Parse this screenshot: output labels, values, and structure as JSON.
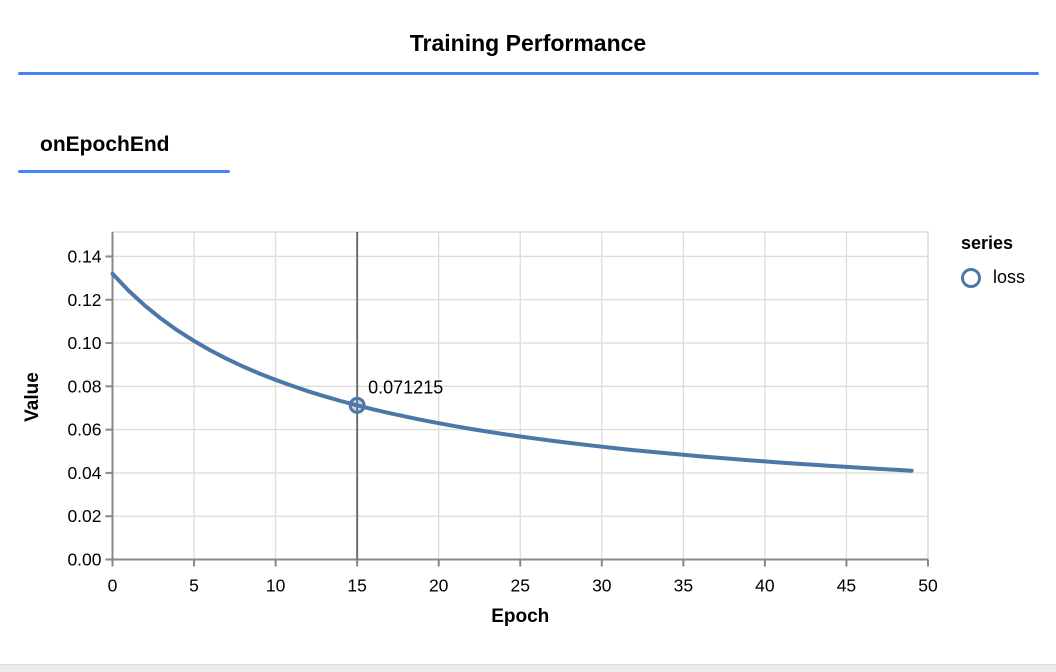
{
  "page": {
    "title": "Training Performance",
    "section_title": "onEpochEnd"
  },
  "colors": {
    "accent_rule": "#4285f4",
    "series_line": "#4c78a8",
    "grid": "#dddddd",
    "view_border": "#dddddd",
    "axis": "#888888",
    "cursor_rule": "#6e6e6e",
    "label_text": "#000000"
  },
  "legend": {
    "title": "series",
    "items": [
      {
        "label": "loss",
        "marker": "circle-outline-icon"
      }
    ]
  },
  "chart_data": {
    "type": "line",
    "title": "Training Performance",
    "subtitle": "onEpochEnd",
    "xlabel": "Epoch",
    "ylabel": "Value",
    "xlim": [
      0,
      50
    ],
    "ylim": [
      0,
      0.1513
    ],
    "grid": true,
    "legend_position": "right",
    "x_ticks": [
      0,
      5,
      10,
      15,
      20,
      25,
      30,
      35,
      40,
      45,
      50
    ],
    "y_ticks": [
      0,
      0.02,
      0.04,
      0.06,
      0.08,
      0.1,
      0.12,
      0.14
    ],
    "y_tick_labels": [
      "0.00",
      "0.02",
      "0.04",
      "0.06",
      "0.08",
      "0.10",
      "0.12",
      "0.14"
    ],
    "series": [
      {
        "name": "loss",
        "x": [
          0,
          1,
          2,
          3,
          4,
          5,
          6,
          7,
          8,
          9,
          10,
          11,
          12,
          13,
          14,
          15,
          16,
          17,
          18,
          19,
          20,
          21,
          22,
          23,
          24,
          25,
          26,
          27,
          28,
          29,
          30,
          31,
          32,
          33,
          34,
          35,
          36,
          37,
          38,
          39,
          40,
          41,
          42,
          43,
          44,
          45,
          46,
          47,
          48,
          49
        ],
        "values": [
          0.132009,
          0.12411,
          0.117214,
          0.111142,
          0.105754,
          0.10094,
          0.096614,
          0.092705,
          0.089155,
          0.085918,
          0.082953,
          0.080227,
          0.077714,
          0.075388,
          0.07323,
          0.071215,
          0.069349,
          0.067598,
          0.065957,
          0.064416,
          0.062967,
          0.061601,
          0.060311,
          0.059092,
          0.057937,
          0.056842,
          0.055802,
          0.054813,
          0.053871,
          0.052974,
          0.052117,
          0.051299,
          0.050516,
          0.049767,
          0.04905,
          0.048362,
          0.047701,
          0.047067,
          0.046457,
          0.04587,
          0.045305,
          0.04476,
          0.044235,
          0.043729,
          0.04324,
          0.042768,
          0.042312,
          0.04187,
          0.041443,
          0.04103
        ]
      }
    ],
    "highlight": {
      "x": 15,
      "y": 0.071215,
      "label": "0.071215"
    }
  }
}
